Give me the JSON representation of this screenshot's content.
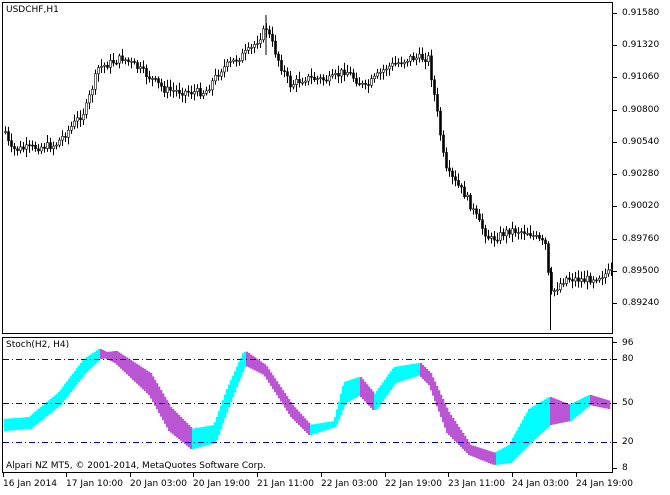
{
  "chart": {
    "symbol_label": "USDCHF,H1",
    "price_axis": [
      "0.91580",
      "0.91320",
      "0.91060",
      "0.90800",
      "0.90540",
      "0.90280",
      "0.90020",
      "0.89760",
      "0.89500",
      "0.89240"
    ],
    "time_axis": [
      "16 Jan 2014",
      "17 Jan 10:00",
      "20 Jan 03:00",
      "20 Jan 19:00",
      "21 Jan 11:00",
      "22 Jan 03:00",
      "22 Jan 19:00",
      "23 Jan 11:00",
      "24 Jan 03:00",
      "24 Jan 19:00"
    ]
  },
  "indicator": {
    "label": "Stoch(H2, H4)",
    "axis": [
      "96",
      "80",
      "50",
      "20",
      "8"
    ],
    "colors": {
      "up": "#00FFFF",
      "down": "#BA55D3",
      "levels": "#0000CD"
    }
  },
  "footer": {
    "copyright": "Alpari NZ MT5, © 2001-2014, MetaQuotes Software Corp."
  }
}
